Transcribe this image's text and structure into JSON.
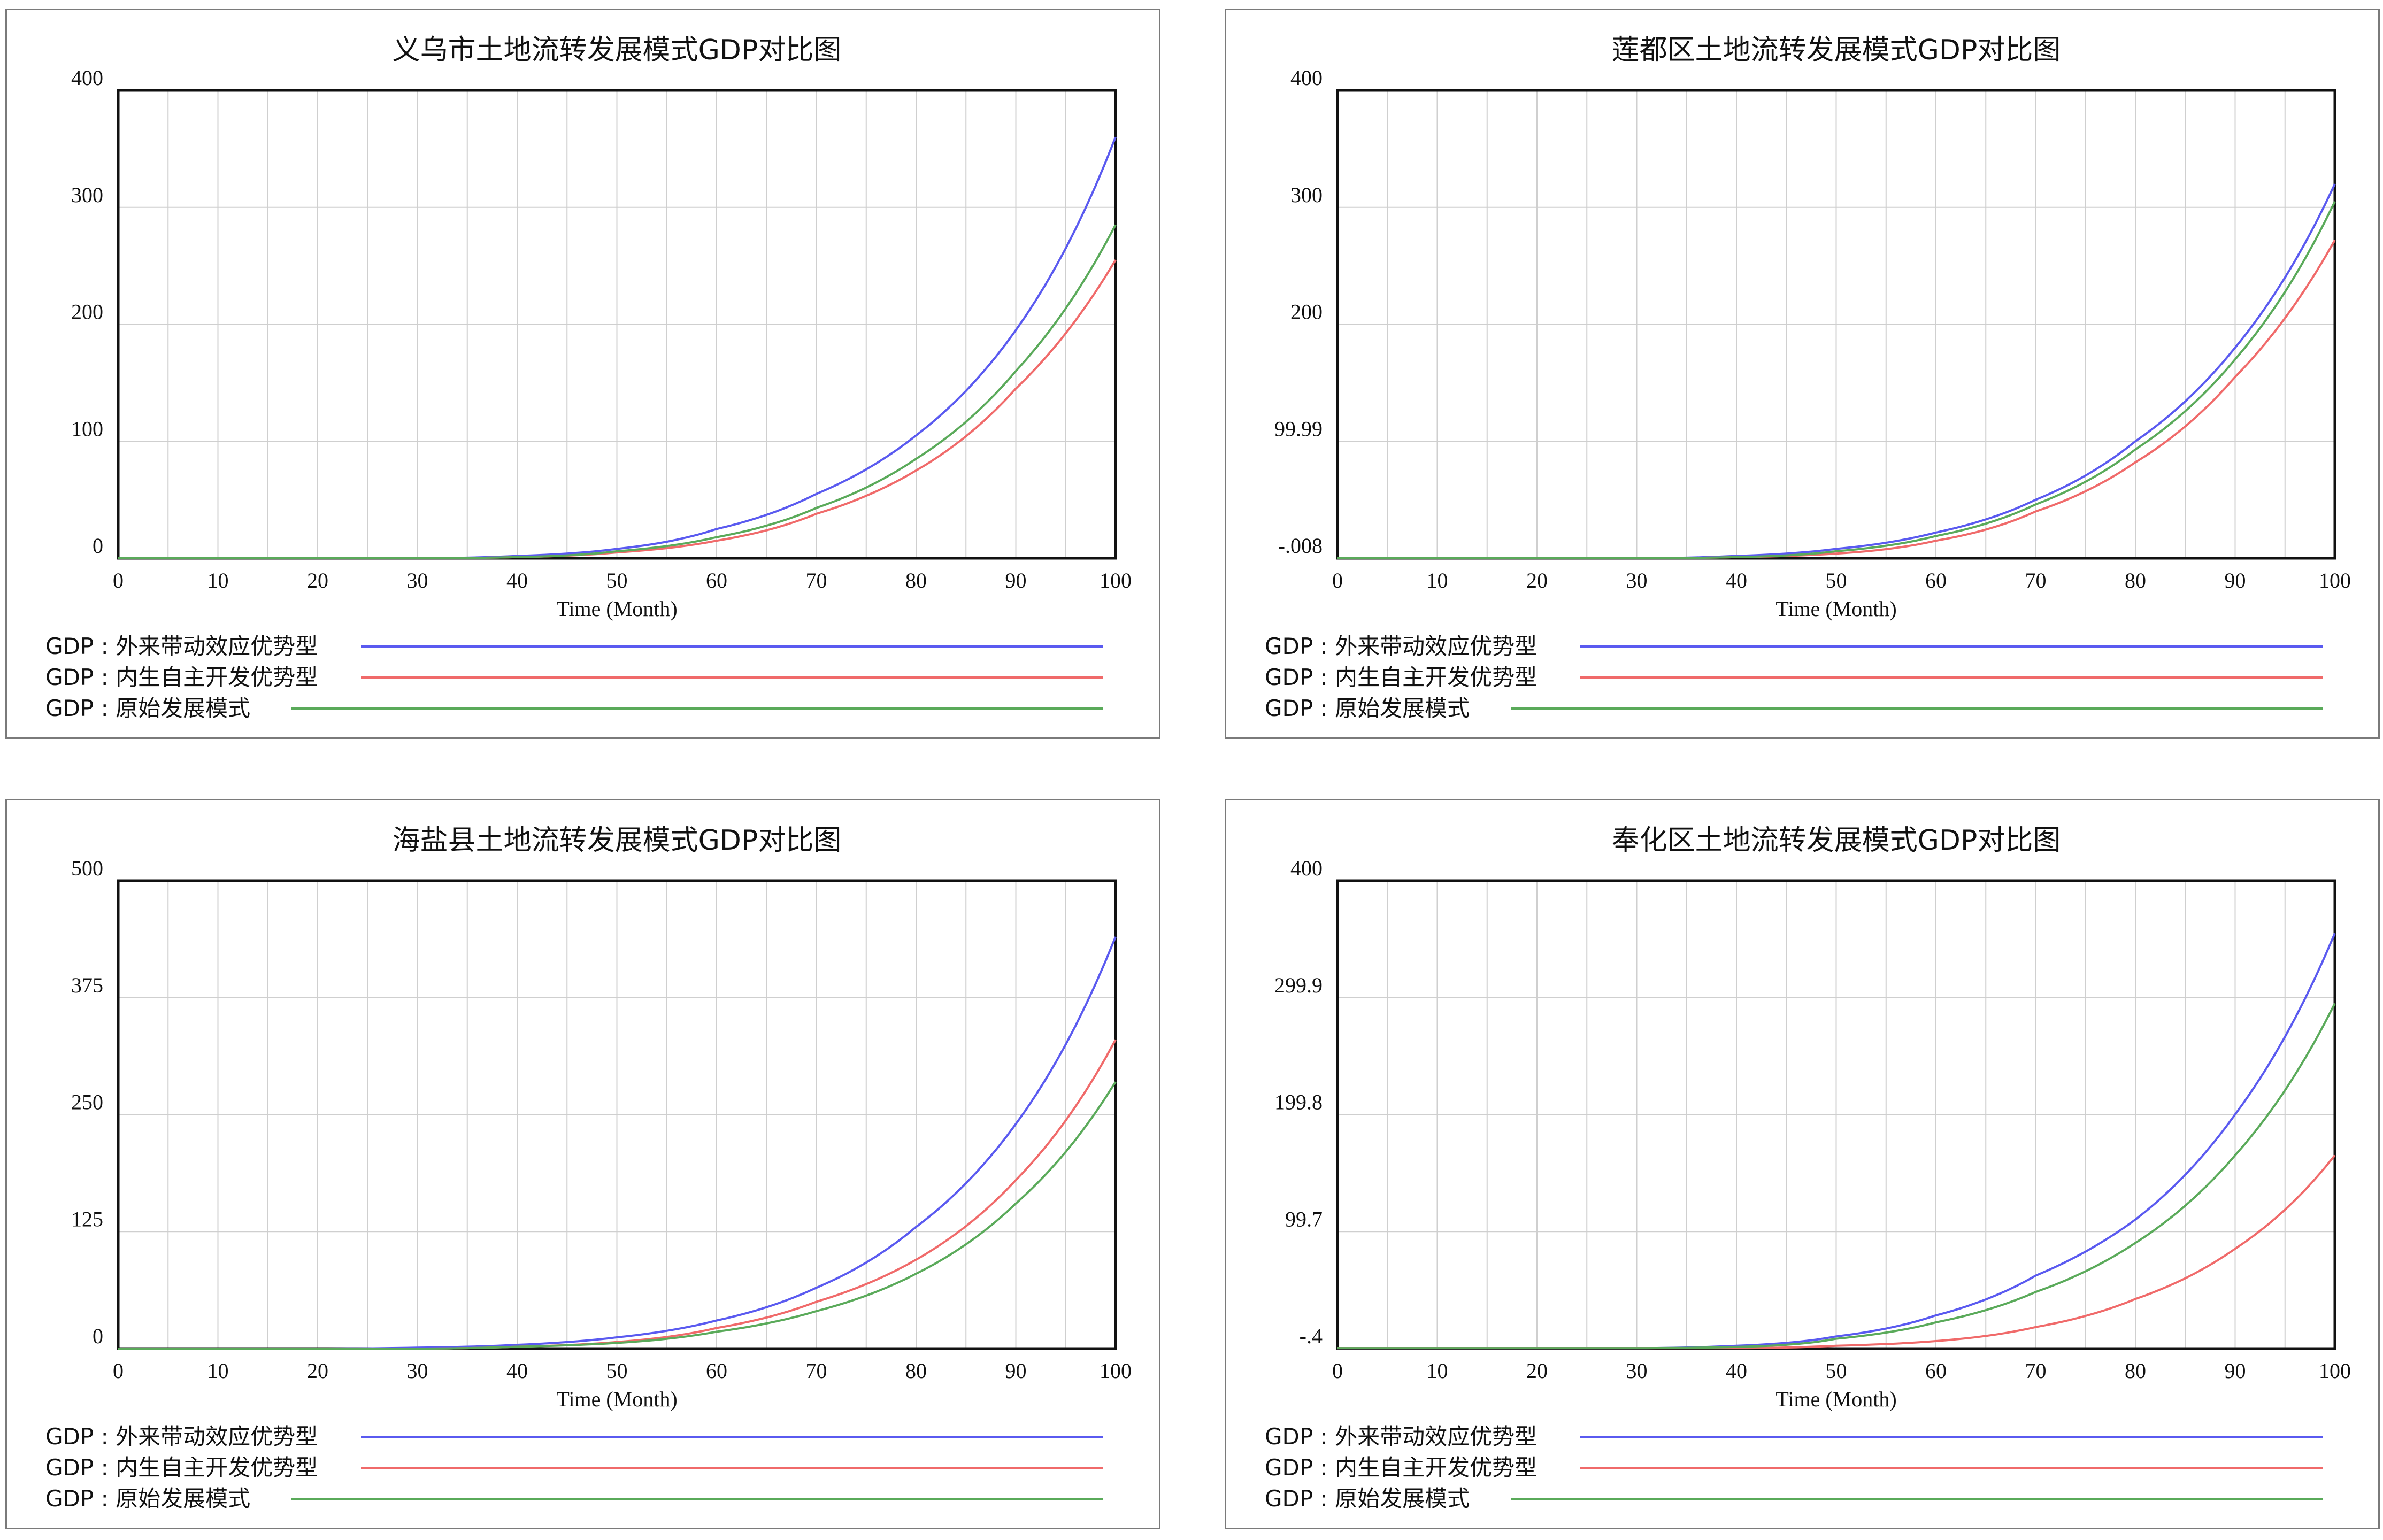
{
  "chart_data": [
    {
      "type": "line",
      "title": "义乌市土地流转发展模式GDP对比图",
      "xlabel": "Time (Month)",
      "ylabel": "",
      "xlim": [
        0,
        100
      ],
      "ylim": [
        0,
        400
      ],
      "xticks": [
        "0",
        "10",
        "20",
        "30",
        "40",
        "50",
        "60",
        "70",
        "80",
        "90",
        "100"
      ],
      "yticks": [
        "0",
        "100",
        "200",
        "300",
        "400"
      ],
      "grid": true,
      "x": [
        0,
        10,
        20,
        30,
        40,
        50,
        60,
        70,
        80,
        90,
        100
      ],
      "series": [
        {
          "name": "GDP : 外来带动效应优势型",
          "color": "#5a5af0",
          "values": [
            0,
            0,
            0,
            0,
            2,
            8,
            25,
            55,
            105,
            195,
            360
          ]
        },
        {
          "name": "GDP : 内生自主开发优势型",
          "color": "#f06a6a",
          "values": [
            0,
            0,
            0,
            0,
            1,
            5,
            15,
            38,
            75,
            145,
            255
          ]
        },
        {
          "name": "GDP : 原始发展模式",
          "color": "#5aaa5a",
          "values": [
            0,
            0,
            0,
            0,
            1,
            6,
            18,
            43,
            85,
            160,
            285
          ]
        }
      ]
    },
    {
      "type": "line",
      "title": "莲都区土地流转发展模式GDP对比图",
      "xlabel": "Time (Month)",
      "ylabel": "",
      "xlim": [
        0,
        100
      ],
      "ylim": [
        -0.008,
        400
      ],
      "xticks": [
        "0",
        "10",
        "20",
        "30",
        "40",
        "50",
        "60",
        "70",
        "80",
        "90",
        "100"
      ],
      "yticks": [
        "-.008",
        "99.99",
        "200",
        "300",
        "400"
      ],
      "grid": true,
      "x": [
        0,
        10,
        20,
        30,
        40,
        50,
        60,
        70,
        80,
        90,
        100
      ],
      "series": [
        {
          "name": "GDP : 外来带动效应优势型",
          "color": "#5a5af0",
          "values": [
            0,
            0,
            0,
            0,
            2,
            8,
            22,
            50,
            100,
            180,
            320
          ]
        },
        {
          "name": "GDP : 内生自主开发优势型",
          "color": "#f06a6a",
          "values": [
            0,
            0,
            0,
            0,
            1,
            4,
            15,
            40,
            82,
            155,
            272
          ]
        },
        {
          "name": "GDP : 原始发展模式",
          "color": "#5aaa5a",
          "values": [
            0,
            0,
            0,
            0,
            1,
            6,
            19,
            46,
            93,
            170,
            305
          ]
        }
      ]
    },
    {
      "type": "line",
      "title": "海盐县土地流转发展模式GDP对比图",
      "xlabel": "Time (Month)",
      "ylabel": "",
      "xlim": [
        0,
        100
      ],
      "ylim": [
        0,
        500
      ],
      "xticks": [
        "0",
        "10",
        "20",
        "30",
        "40",
        "50",
        "60",
        "70",
        "80",
        "90",
        "100"
      ],
      "yticks": [
        "0",
        "125",
        "250",
        "375",
        "500"
      ],
      "grid": true,
      "x": [
        0,
        10,
        20,
        30,
        40,
        50,
        60,
        70,
        80,
        90,
        100
      ],
      "series": [
        {
          "name": "GDP : 外来带动效应优势型",
          "color": "#5a5af0",
          "values": [
            0,
            0,
            0,
            1,
            4,
            12,
            30,
            65,
            130,
            240,
            440
          ]
        },
        {
          "name": "GDP : 内生自主开发优势型",
          "color": "#f06a6a",
          "values": [
            0,
            0,
            0,
            0,
            2,
            7,
            22,
            50,
            95,
            180,
            330
          ]
        },
        {
          "name": "GDP : 原始发展模式",
          "color": "#5aaa5a",
          "values": [
            0,
            0,
            0,
            0,
            2,
            6,
            18,
            40,
            80,
            155,
            285
          ]
        }
      ]
    },
    {
      "type": "line",
      "title": "奉化区土地流转发展模式GDP对比图",
      "xlabel": "Time (Month)",
      "ylabel": "",
      "xlim": [
        0,
        100
      ],
      "ylim": [
        -0.4,
        400
      ],
      "xticks": [
        "0",
        "10",
        "20",
        "30",
        "40",
        "50",
        "60",
        "70",
        "80",
        "90",
        "100"
      ],
      "yticks": [
        "-.4",
        "99.7",
        "199.8",
        "299.9",
        "400"
      ],
      "grid": true,
      "x": [
        0,
        10,
        20,
        30,
        40,
        50,
        60,
        70,
        80,
        90,
        100
      ],
      "series": [
        {
          "name": "GDP : 外来带动效应优势型",
          "color": "#5a5af0",
          "values": [
            0,
            0,
            0,
            0,
            2,
            10,
            28,
            62,
            110,
            200,
            355
          ]
        },
        {
          "name": "GDP : 内生自主开发优势型",
          "color": "#f06a6a",
          "values": [
            0,
            0,
            0,
            0,
            0,
            2,
            6,
            18,
            42,
            85,
            165
          ]
        },
        {
          "name": "GDP : 原始发展模式",
          "color": "#5aaa5a",
          "values": [
            0,
            0,
            0,
            0,
            1,
            8,
            22,
            48,
            90,
            165,
            295
          ]
        }
      ]
    }
  ]
}
